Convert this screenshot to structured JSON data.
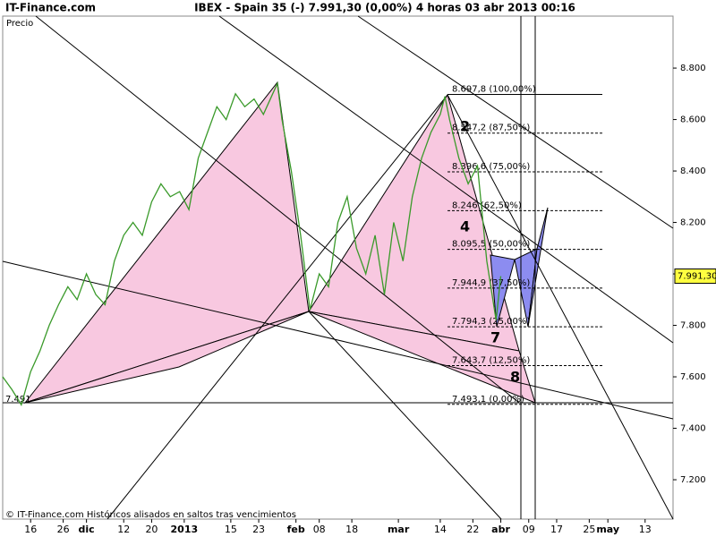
{
  "brand": "IT-Finance.com",
  "chart_data": {
    "type": "line",
    "title": "IBEX - Spain 35 (-)   7.991,30 (0,00%)   4 horas  03 abr 2013 00:16",
    "y_label": "Precio",
    "footer": "© IT-Finance.com  Históricos alisados en saltos tras vencimientos",
    "low_label": "7.491",
    "last_label": "7.991,30",
    "xlim": [
      0,
      144
    ],
    "ylim": [
      7047,
      9002
    ],
    "xticks": [
      {
        "value": 6,
        "label": "16"
      },
      {
        "value": 13,
        "label": "26"
      },
      {
        "value": 18,
        "label": "dic"
      },
      {
        "value": 26,
        "label": "12"
      },
      {
        "value": 32,
        "label": "20"
      },
      {
        "value": 39,
        "label": "2013"
      },
      {
        "value": 49,
        "label": "15"
      },
      {
        "value": 55,
        "label": "23"
      },
      {
        "value": 63,
        "label": "feb"
      },
      {
        "value": 68,
        "label": "08"
      },
      {
        "value": 75,
        "label": "18"
      },
      {
        "value": 85,
        "label": "mar"
      },
      {
        "value": 94,
        "label": "14"
      },
      {
        "value": 101,
        "label": "22"
      },
      {
        "value": 107,
        "label": "abr"
      },
      {
        "value": 113,
        "label": "09"
      },
      {
        "value": 119,
        "label": "17"
      },
      {
        "value": 126,
        "label": "25"
      },
      {
        "value": 130,
        "label": "may"
      },
      {
        "value": 138,
        "label": "13"
      }
    ],
    "yticks": [
      {
        "value": 7200,
        "label": "7.200"
      },
      {
        "value": 7400,
        "label": "7.400"
      },
      {
        "value": 7600,
        "label": "7.600"
      },
      {
        "value": 7800,
        "label": "7.800"
      },
      {
        "value": 8000,
        "label": "8.000"
      },
      {
        "value": 8200,
        "label": "8.200"
      },
      {
        "value": 8400,
        "label": "8.400"
      },
      {
        "value": 8600,
        "label": "8.600"
      },
      {
        "value": 8800,
        "label": "8.800"
      }
    ],
    "series": [
      {
        "name": "IBEX",
        "color": "#3a9a2a",
        "x": [
          0,
          2,
          4,
          6,
          8,
          10,
          12,
          14,
          16,
          18,
          20,
          22,
          24,
          26,
          28,
          30,
          32,
          34,
          36,
          38,
          40,
          42,
          44,
          46,
          48,
          50,
          52,
          54,
          56,
          58,
          59,
          60,
          62,
          64,
          66,
          68,
          70,
          72,
          74,
          76,
          78,
          80,
          82,
          84,
          86,
          88,
          90,
          92,
          94,
          95,
          96,
          98,
          100,
          102,
          104,
          106,
          107
        ],
        "values": [
          7600,
          7550,
          7491,
          7620,
          7700,
          7800,
          7880,
          7950,
          7900,
          8000,
          7920,
          7880,
          8050,
          8150,
          8200,
          8150,
          8280,
          8350,
          8300,
          8320,
          8250,
          8450,
          8550,
          8650,
          8600,
          8700,
          8650,
          8680,
          8620,
          8700,
          8740,
          8600,
          8400,
          8150,
          7860,
          8000,
          7950,
          8200,
          8300,
          8100,
          8000,
          8150,
          7920,
          8200,
          8050,
          8300,
          8450,
          8550,
          8620,
          8690,
          8600,
          8450,
          8350,
          8420,
          8050,
          7820,
          7991
        ]
      }
    ],
    "last_value": 7991.3,
    "levels": [
      {
        "value": 8697.8,
        "label": "8.697,8 (100,00%)"
      },
      {
        "value": 8547.2,
        "label": "8.547,2 (87,50%)"
      },
      {
        "value": 8396.6,
        "label": "8.396,6 (75,00%)"
      },
      {
        "value": 8246,
        "label": "8.246 (62,50%)"
      },
      {
        "value": 8095.5,
        "label": "8.095,5 (50,00%)"
      },
      {
        "value": 7944.9,
        "label": "7.944,9 (37,50%)"
      },
      {
        "value": 7794.3,
        "label": "7.794,3 (25,00%)"
      },
      {
        "value": 7643.7,
        "label": "7.643,7 (12,50%)"
      },
      {
        "value": 7493.1,
        "label": "7.493,1 (0,00%)"
      }
    ],
    "annotations": [
      "2",
      "4",
      "7",
      "8"
    ]
  }
}
